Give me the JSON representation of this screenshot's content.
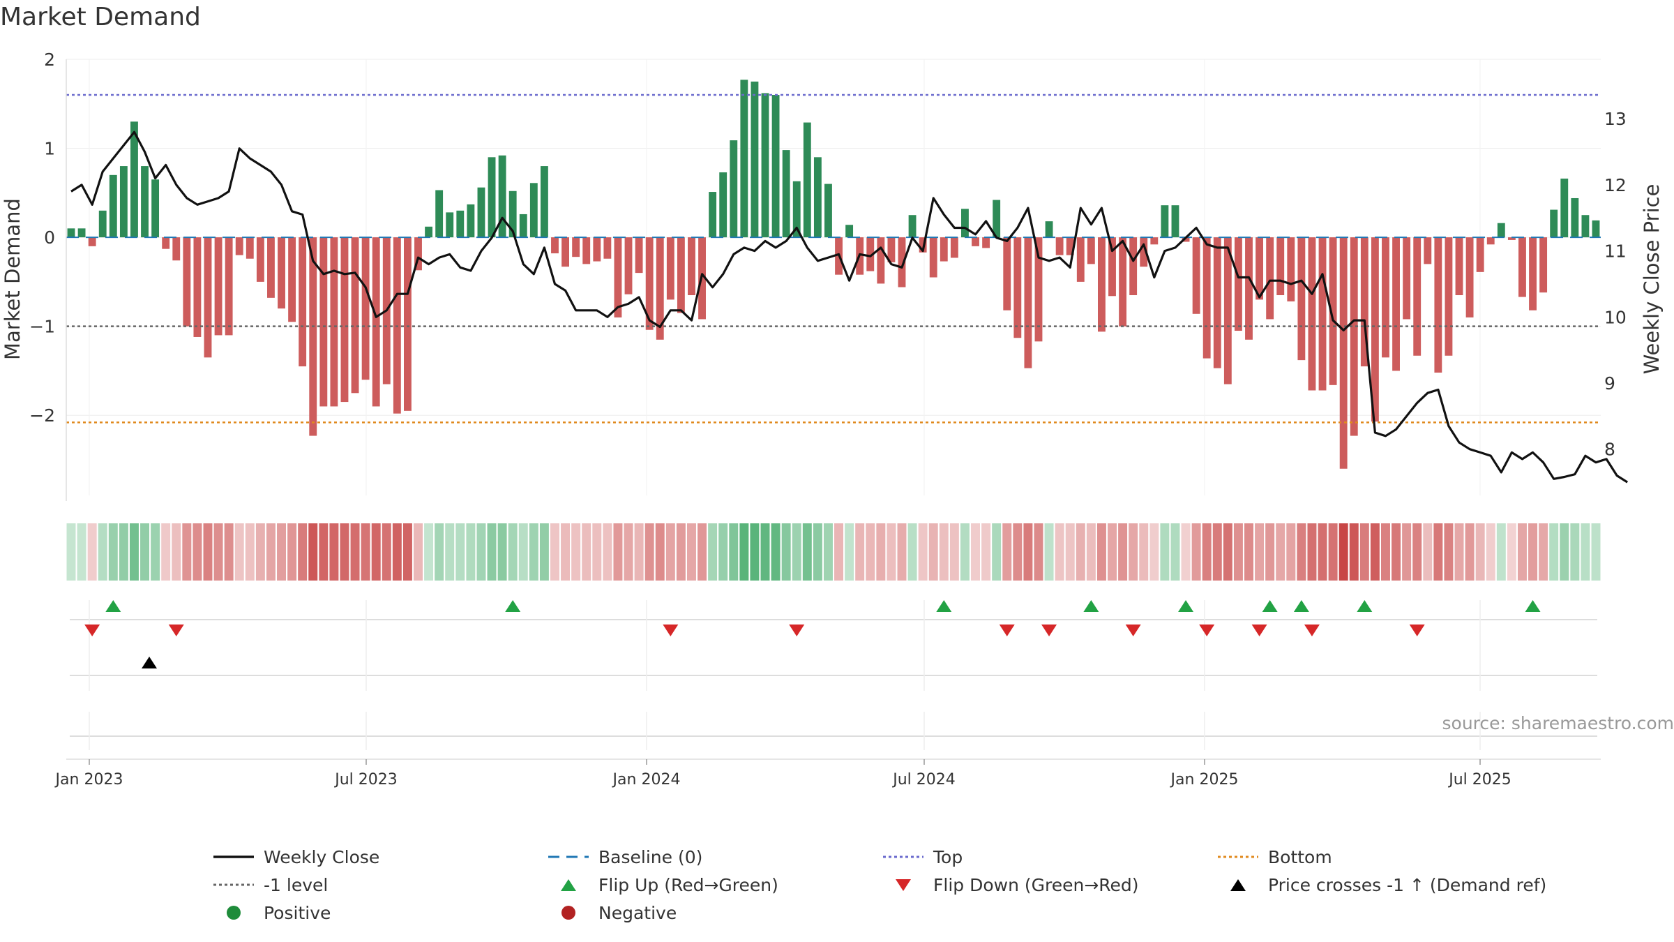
{
  "chart_data": {
    "type": "bar",
    "title": "Market Demand",
    "ylabel_left": "Market Demand",
    "ylabel_right": "Weekly Close Price",
    "ylim_left": [
      -2.9,
      2
    ],
    "ylim_right": [
      7.3,
      13.9
    ],
    "left_ticks": [
      "2",
      "1",
      "0",
      "−1",
      "−2"
    ],
    "right_ticks": [
      "13",
      "12",
      "11",
      "10",
      "9",
      "8"
    ],
    "x_tick_labels": [
      "Jan 2023",
      "Jul 2023",
      "Jan 2024",
      "Jul 2024",
      "Jan 2025",
      "Jul 2025"
    ],
    "reference_lines": {
      "top": 1.6,
      "minus_one": -1,
      "bottom": -2.08,
      "baseline": 0
    },
    "colors": {
      "positive": "#2e8b57",
      "negative": "#cd5c5c",
      "close": "#111111",
      "top": "#6a6acd",
      "bottom": "#e08a1e",
      "minus_one": "#666666",
      "baseline": "#1f77b4",
      "flip_up": "#22a244",
      "flip_down": "#d62728",
      "cross": "#000000"
    },
    "bars": [
      0.1,
      0.1,
      -0.1,
      0.3,
      0.7,
      0.8,
      1.3,
      0.8,
      0.65,
      -0.13,
      -0.26,
      -1.0,
      -1.12,
      -1.35,
      -1.1,
      -1.1,
      -0.2,
      -0.24,
      -0.5,
      -0.68,
      -0.8,
      -0.95,
      -1.45,
      -2.23,
      -1.9,
      -1.9,
      -1.85,
      -1.75,
      -1.6,
      -1.9,
      -1.65,
      -1.98,
      -1.95,
      -0.37,
      0.12,
      0.53,
      0.28,
      0.3,
      0.37,
      0.56,
      0.9,
      0.92,
      0.52,
      0.26,
      0.61,
      0.8,
      -0.18,
      -0.33,
      -0.22,
      -0.3,
      -0.27,
      -0.24,
      -0.9,
      -0.64,
      -0.4,
      -1.04,
      -1.15,
      -0.7,
      -0.85,
      -0.65,
      -0.92,
      0.51,
      0.73,
      1.09,
      1.77,
      1.75,
      1.62,
      1.6,
      0.98,
      0.63,
      1.29,
      0.9,
      0.6,
      -0.42,
      0.14,
      -0.42,
      -0.38,
      -0.52,
      -0.28,
      -0.56,
      0.25,
      -0.17,
      -0.45,
      -0.27,
      -0.23,
      0.32,
      -0.1,
      -0.12,
      0.42,
      -0.82,
      -1.13,
      -1.47,
      -1.17,
      0.18,
      -0.2,
      -0.2,
      -0.5,
      -0.3,
      -1.06,
      -0.66,
      -1.0,
      -0.65,
      -0.33,
      -0.08,
      0.36,
      0.36,
      -0.05,
      -0.86,
      -1.36,
      -1.47,
      -1.65,
      -1.05,
      -1.15,
      -0.7,
      -0.92,
      -0.65,
      -0.72,
      -1.38,
      -1.72,
      -1.72,
      -1.66,
      -2.6,
      -2.23,
      -1.45,
      -2.07,
      -1.35,
      -1.5,
      -0.92,
      -1.33,
      -0.3,
      -1.52,
      -1.33,
      -0.65,
      -0.9,
      -0.39,
      -0.08,
      0.16,
      -0.03,
      -0.67,
      -0.82,
      -0.62,
      0.31,
      0.66,
      0.44,
      0.25,
      0.19
    ],
    "close": [
      11.9,
      12.0,
      11.7,
      12.2,
      12.4,
      12.6,
      12.8,
      12.5,
      12.1,
      12.3,
      12.0,
      11.8,
      11.7,
      11.75,
      11.8,
      11.9,
      12.55,
      12.4,
      12.3,
      12.2,
      12.0,
      11.6,
      11.55,
      10.85,
      10.65,
      10.7,
      10.65,
      10.67,
      10.45,
      10.0,
      10.1,
      10.35,
      10.35,
      10.9,
      10.8,
      10.9,
      10.95,
      10.75,
      10.7,
      11.0,
      11.2,
      11.5,
      11.3,
      10.8,
      10.65,
      11.05,
      10.5,
      10.4,
      10.1,
      10.1,
      10.1,
      10.0,
      10.15,
      10.2,
      10.3,
      9.95,
      9.85,
      10.1,
      10.1,
      9.95,
      10.65,
      10.45,
      10.65,
      10.95,
      11.05,
      11.0,
      11.15,
      11.05,
      11.15,
      11.35,
      11.05,
      10.85,
      10.9,
      10.95,
      10.55,
      10.95,
      10.92,
      11.05,
      10.8,
      10.75,
      11.2,
      11.0,
      11.8,
      11.55,
      11.35,
      11.35,
      11.25,
      11.45,
      11.2,
      11.15,
      11.35,
      11.65,
      10.9,
      10.85,
      10.9,
      10.75,
      11.65,
      11.4,
      11.65,
      11.0,
      11.15,
      10.85,
      11.1,
      10.6,
      11.0,
      11.05,
      11.2,
      11.35,
      11.1,
      11.05,
      11.05,
      10.6,
      10.6,
      10.3,
      10.55,
      10.55,
      10.5,
      10.55,
      10.35,
      10.65,
      9.95,
      9.8,
      9.95,
      9.95,
      8.25,
      8.2,
      8.3,
      8.5,
      8.7,
      8.85,
      8.9,
      8.35,
      8.1,
      8.0,
      7.95,
      7.9,
      7.65,
      7.95,
      7.85,
      7.95,
      7.8,
      7.55,
      7.58,
      7.62,
      7.9,
      7.8,
      7.85,
      7.6,
      7.5
    ],
    "flip_up": [
      4,
      42,
      83,
      97,
      106,
      114,
      117,
      123,
      139,
      184,
      187
    ],
    "flip_down": [
      2,
      10,
      57,
      69,
      89,
      93,
      101,
      108,
      113,
      118,
      128,
      192
    ],
    "price_cross_up": [
      7.43
    ],
    "legend": [
      {
        "label": "Weekly Close",
        "symbol": "line-solid",
        "color": "#111111"
      },
      {
        "label": "Baseline (0)",
        "symbol": "line-dash",
        "color": "#1f77b4"
      },
      {
        "label": "Top",
        "symbol": "line-dot",
        "color": "#6a6acd"
      },
      {
        "label": "Bottom",
        "symbol": "line-dot",
        "color": "#e08a1e"
      },
      {
        "label": "-1 level",
        "symbol": "line-dot",
        "color": "#666666"
      },
      {
        "label": "Flip Up (Red→Green)",
        "symbol": "tri-up",
        "color": "#22a244"
      },
      {
        "label": "Flip Down (Green→Red)",
        "symbol": "tri-down",
        "color": "#d62728"
      },
      {
        "label": "Price crosses -1 ↑ (Demand ref)",
        "symbol": "tri-up",
        "color": "#000000"
      },
      {
        "label": "Positive",
        "symbol": "dot",
        "color": "#1e8c3a"
      },
      {
        "label": "Negative",
        "symbol": "dot",
        "color": "#b22222"
      }
    ]
  },
  "source_text": "source: sharemaestro.com"
}
